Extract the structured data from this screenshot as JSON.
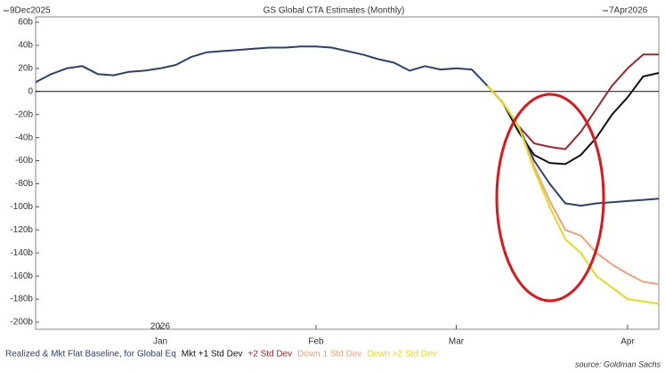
{
  "chart_data": {
    "type": "line",
    "title": "GS Global CTA Estimates (Monthly)",
    "start_label": "9Dec2025",
    "end_label": "7Apr2026",
    "year_label": "2026",
    "source": "source: Goldman Sachs",
    "categories": [
      null,
      null,
      null,
      null,
      null,
      null,
      null,
      null,
      "Jan",
      null,
      null,
      null,
      null,
      null,
      null,
      null,
      null,
      null,
      "Feb",
      null,
      null,
      null,
      null,
      null,
      null,
      null,
      null,
      "Mar",
      null,
      null,
      null,
      null,
      null,
      null,
      null,
      null,
      null,
      null,
      "Apr",
      null,
      null
    ],
    "ylim": [
      -200,
      60
    ],
    "yticks": [
      {
        "value": -200,
        "label": "-200b"
      },
      {
        "value": -180,
        "label": "-180b"
      },
      {
        "value": -160,
        "label": "-160b"
      },
      {
        "value": -140,
        "label": "-140b"
      },
      {
        "value": -120,
        "label": "-120b"
      },
      {
        "value": -100,
        "label": "-100b"
      },
      {
        "value": -80,
        "label": "-80b"
      },
      {
        "value": -60,
        "label": "-60b"
      },
      {
        "value": -40,
        "label": "-40b"
      },
      {
        "value": -20,
        "label": "-20b"
      },
      {
        "value": 0,
        "label": "0"
      },
      {
        "value": 20,
        "label": "20b"
      },
      {
        "value": 40,
        "label": "40b"
      },
      {
        "value": 60,
        "label": "60b"
      }
    ],
    "series": [
      {
        "name": "Realized & Mkt Flat Baseline, for Global Eq",
        "color": "#2e3f6e",
        "values": [
          8,
          15,
          20,
          22,
          15,
          14,
          17,
          18,
          20,
          23,
          30,
          34,
          35,
          36,
          37,
          38,
          38,
          39,
          39,
          38,
          35,
          32,
          28,
          25,
          18,
          22,
          19,
          20,
          19,
          5,
          -10,
          -30,
          -60,
          -80,
          -97,
          -99,
          -97,
          -96,
          -95,
          -94,
          -93
        ]
      },
      {
        "name": "Mkt +1 Std Dev",
        "color": "#111111",
        "values": [
          null,
          null,
          null,
          null,
          null,
          null,
          null,
          null,
          null,
          null,
          null,
          null,
          null,
          null,
          null,
          null,
          null,
          null,
          null,
          null,
          null,
          null,
          null,
          null,
          null,
          null,
          null,
          null,
          null,
          5,
          -10,
          -35,
          -55,
          -62,
          -63,
          -55,
          -40,
          -20,
          -5,
          13,
          16
        ]
      },
      {
        "name": "+2 Std Dev",
        "color": "#a3252c",
        "values": [
          null,
          null,
          null,
          null,
          null,
          null,
          null,
          null,
          null,
          null,
          null,
          null,
          null,
          null,
          null,
          null,
          null,
          null,
          null,
          null,
          null,
          null,
          null,
          null,
          null,
          null,
          null,
          null,
          null,
          5,
          -10,
          -30,
          -45,
          -48,
          -50,
          -35,
          -15,
          5,
          20,
          32,
          32
        ]
      },
      {
        "name": "Down 1 Std Dev",
        "color": "#f5a07a",
        "values": [
          null,
          null,
          null,
          null,
          null,
          null,
          null,
          null,
          null,
          null,
          null,
          null,
          null,
          null,
          null,
          null,
          null,
          null,
          null,
          null,
          null,
          null,
          null,
          null,
          null,
          null,
          null,
          null,
          null,
          5,
          -10,
          -30,
          -65,
          -95,
          -120,
          -125,
          -140,
          -150,
          -158,
          -165,
          -167
        ]
      },
      {
        "name": "Down >2 Std Dev",
        "color": "#e2dd1a",
        "values": [
          null,
          null,
          null,
          null,
          null,
          null,
          null,
          null,
          null,
          null,
          null,
          null,
          null,
          null,
          null,
          null,
          null,
          null,
          null,
          null,
          null,
          null,
          null,
          null,
          null,
          null,
          null,
          null,
          null,
          5,
          -10,
          -30,
          -68,
          -100,
          -128,
          -140,
          -160,
          -170,
          -180,
          -182,
          -184
        ]
      }
    ]
  }
}
